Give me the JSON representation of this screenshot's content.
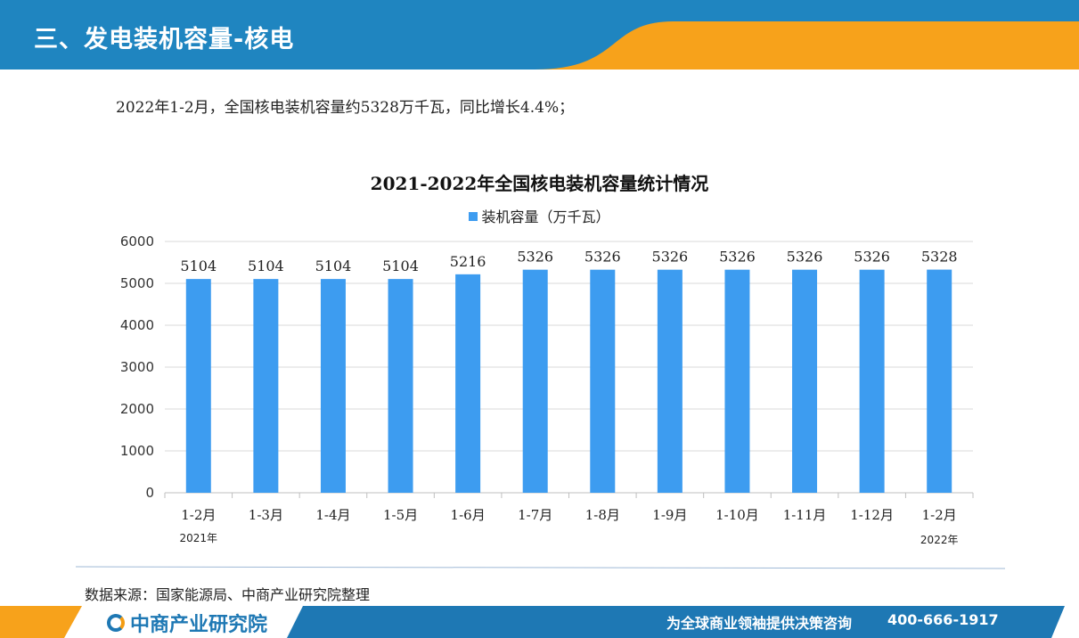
{
  "header": {
    "title": "三、发电装机容量-核电"
  },
  "summary": "2022年1-2月，全国核电装机容量约5328万千瓦，同比增长4.4%；",
  "colors": {
    "header_blue": "#1f85c0",
    "accent_orange": "#f7a21b",
    "bar": "#3d9cf0",
    "footer_blue": "#1e78b4"
  },
  "chart_data": {
    "type": "bar",
    "title": "2021-2022年全国核电装机容量统计情况",
    "categories": [
      "1-2月",
      "1-3月",
      "1-4月",
      "1-5月",
      "1-6月",
      "1-7月",
      "1-8月",
      "1-9月",
      "1-10月",
      "1-11月",
      "1-12月",
      "1-2月"
    ],
    "series": [
      {
        "name": "装机容量（万千瓦）",
        "values": [
          5104,
          5104,
          5104,
          5104,
          5216,
          5326,
          5326,
          5326,
          5326,
          5326,
          5326,
          5328
        ]
      }
    ],
    "ylim": [
      0,
      6000
    ],
    "yticks": [
      0,
      1000,
      2000,
      3000,
      4000,
      5000,
      6000
    ],
    "grid": true,
    "legend_position": "top",
    "year_notes": [
      "2021年",
      "2022年"
    ]
  },
  "source": "数据来源：国家能源局、中商产业研究院整理",
  "footer": {
    "brand": "中商产业研究院",
    "logo_icon": "brand-logo-icon",
    "slogan": "为全球商业领袖提供决策咨询",
    "hotline": "400-666-1917"
  }
}
